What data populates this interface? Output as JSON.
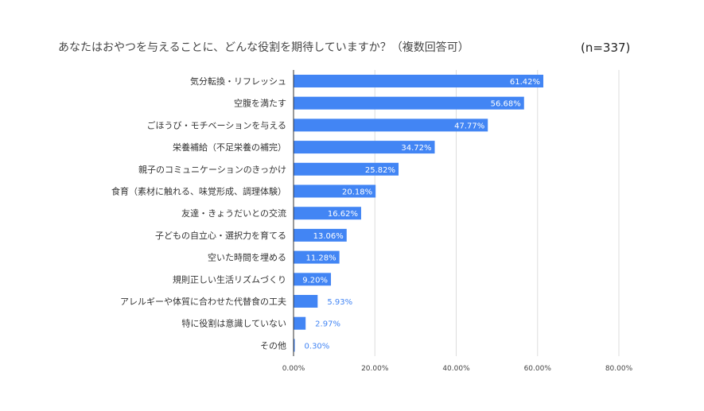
{
  "chart_data": {
    "type": "bar",
    "orientation": "horizontal",
    "title": "あなたはおやつを与えることに、どんな役割を期待していますか？（複数回答可）",
    "note": "(n=337)",
    "categories": [
      "気分転換・リフレッシュ",
      "空腹を満たす",
      "ごほうび・モチベーションを与える",
      "栄養補給（不足栄養の補完）",
      "親子のコミュニケーションのきっかけ",
      "食育（素材に触れる、味覚形成、調理体験）",
      "友達・きょうだいとの交流",
      "子どもの自立心・選択力を育てる",
      "空いた時間を埋める",
      "規則正しい生活リズムづくり",
      "アレルギーや体質に合わせた代替食の工夫",
      "特に役割は意識していない",
      "その他"
    ],
    "values": [
      61.42,
      56.68,
      47.77,
      34.72,
      25.82,
      20.18,
      16.62,
      13.06,
      11.28,
      9.2,
      5.93,
      2.97,
      0.3
    ],
    "data_labels": [
      "61.42%",
      "56.68%",
      "47.77%",
      "34.72%",
      "25.82%",
      "20.18%",
      "16.62%",
      "13.06%",
      "11.28%",
      "9.20%",
      "5.93%",
      "2.97%",
      "0.30%"
    ],
    "xticks": [
      0,
      20,
      40,
      60,
      80
    ],
    "xtick_labels": [
      "0.00%",
      "20.00%",
      "40.00%",
      "60.00%",
      "80.00%"
    ],
    "xlim": [
      0,
      80
    ],
    "grid": true,
    "color": "#4285f4"
  }
}
